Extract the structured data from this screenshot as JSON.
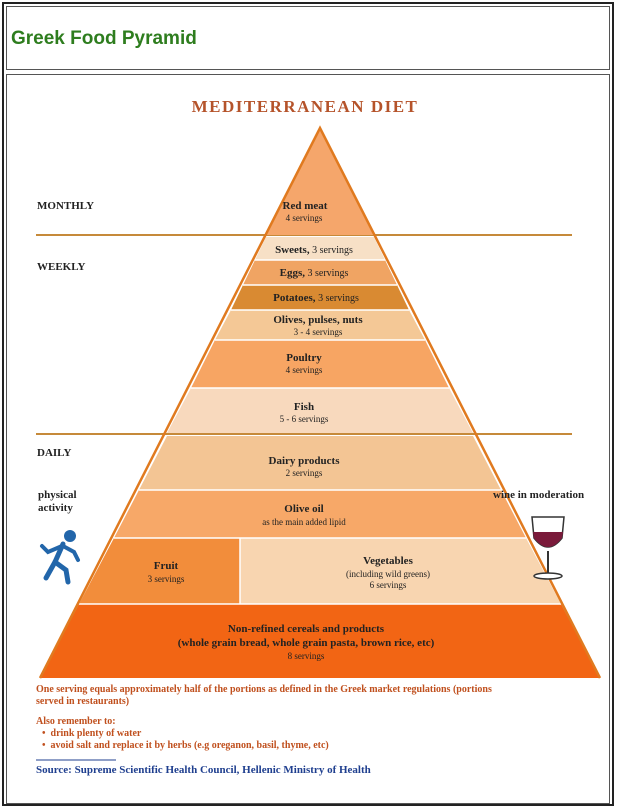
{
  "header": {
    "title": "Greek Food Pyramid"
  },
  "diagram": {
    "title": "MEDITERRANEAN DIET",
    "frequencies": {
      "monthly": "MONTHLY",
      "weekly": "WEEKLY",
      "daily": "DAILY"
    },
    "layers": {
      "red_meat": {
        "name": "Red meat",
        "servings": "4 servings",
        "color": "#f5a66b"
      },
      "sweets": {
        "name": "Sweets,",
        "servings": "3 servings",
        "color": "#f7e0c6"
      },
      "eggs": {
        "name": "Eggs,",
        "servings": "3 servings",
        "color": "#f0a463"
      },
      "potatoes": {
        "name": "Potatoes,",
        "servings": "3 servings",
        "color": "#d98a32"
      },
      "olives": {
        "name": "Olives, pulses, nuts",
        "servings": "3 - 4 servings",
        "color": "#f4c896"
      },
      "poultry": {
        "name": "Poultry",
        "servings": "4 servings",
        "color": "#f7a563"
      },
      "fish": {
        "name": "Fish",
        "servings": "5 - 6 servings",
        "color": "#f8d9bd"
      },
      "dairy": {
        "name": "Dairy products",
        "servings": "2 servings",
        "color": "#f3c594"
      },
      "olive_oil": {
        "name": "Olive oil",
        "servings": "as the main added lipid",
        "color": "#f7a868"
      },
      "fruit": {
        "name": "Fruit",
        "servings": "3 servings",
        "color": "#f28d3b"
      },
      "vegetables": {
        "name": "Vegetables",
        "note": "(including wild greens)",
        "servings": "6 servings",
        "color": "#f8d5b0"
      },
      "cereals": {
        "name": "Non-refined cereals and products",
        "note": "(whole grain bread, whole grain pasta, brown rice, etc)",
        "servings": "8 servings",
        "color": "#f26514"
      }
    },
    "side": {
      "activity": "physical\nactivity",
      "activity_line1": "physical",
      "activity_line2": "activity",
      "wine": "wine in moderation"
    },
    "notes": {
      "serving_line1": "One serving equals approximately half of the portions as defined in the Greek market regulations (portions",
      "serving_line2": "served in restaurants)",
      "remember": "Also remember to:",
      "bullet1": "drink plenty of water",
      "bullet2": "avoid salt and replace it by herbs (e.g oreganon, basil, thyme, etc)"
    },
    "source": "Source: Supreme Scientific Health Council, Hellenic Ministry of Health",
    "colors": {
      "title": "#b5532a",
      "separator": "#c68a3a",
      "outline": "#e07a1f",
      "source": "#1f3f8f",
      "figure": "#2266aa",
      "wine": "#7a1a3a"
    }
  }
}
